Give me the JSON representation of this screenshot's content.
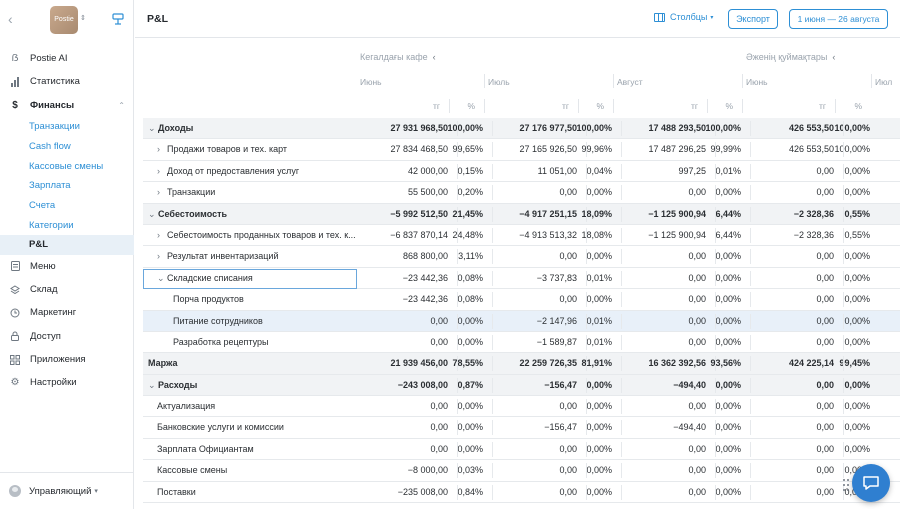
{
  "sidebar": {
    "logo_text": "Postie",
    "nav": [
      {
        "label": "Postie AI",
        "icon": "postie-ai-icon"
      },
      {
        "label": "Статистика",
        "icon": "bar-chart-icon"
      },
      {
        "label": "Финансы",
        "icon": "dollar-icon"
      }
    ],
    "finance_sub": [
      {
        "label": "Транзакции"
      },
      {
        "label": "Cash flow"
      },
      {
        "label": "Кассовые смены"
      },
      {
        "label": "Зарплата"
      },
      {
        "label": "Счета"
      },
      {
        "label": "Категории"
      },
      {
        "label": "P&L"
      }
    ],
    "nav2": [
      {
        "label": "Меню",
        "icon": "menu-doc-icon"
      },
      {
        "label": "Склад",
        "icon": "layers-icon"
      },
      {
        "label": "Маркетинг",
        "icon": "clock-icon"
      },
      {
        "label": "Доступ",
        "icon": "lock-icon"
      },
      {
        "label": "Приложения",
        "icon": "grid-icon"
      },
      {
        "label": "Настройки",
        "icon": "gear-icon"
      }
    ],
    "user": "Управляющий"
  },
  "header": {
    "title": "P&L",
    "columns_label": "Столбцы",
    "export_label": "Экспорт",
    "date_range": "1 июня — 26 августа"
  },
  "groups": [
    {
      "label": "Кегалдағы кафе"
    },
    {
      "label": "Әженің қуймақтары"
    }
  ],
  "months": [
    "Июнь",
    "Июль",
    "Август",
    "Июнь",
    "Июл"
  ],
  "units": {
    "currency": "тг",
    "percent": "%"
  },
  "rows": [
    {
      "name": "Доходы",
      "type": "section",
      "toggle": "⌄",
      "indent": 0,
      "v": [
        "27 931 968,50",
        "100,00%",
        "27 176 977,50",
        "100,00%",
        "17 488 293,50",
        "100,00%",
        "426 553,50",
        "100,00%"
      ]
    },
    {
      "name": "Продажи товаров и тех. карт",
      "type": "item",
      "toggle": "›",
      "indent": 1,
      "v": [
        "27 834 468,50",
        "99,65%",
        "27 165 926,50",
        "99,96%",
        "17 487 296,25",
        "99,99%",
        "426 553,50",
        "100,00%"
      ]
    },
    {
      "name": "Доход от предоставления услуг",
      "type": "item",
      "toggle": "›",
      "indent": 1,
      "v": [
        "42 000,00",
        "0,15%",
        "11 051,00",
        "0,04%",
        "997,25",
        "0,01%",
        "0,00",
        "0,00%"
      ]
    },
    {
      "name": "Транзакции",
      "type": "item",
      "toggle": "›",
      "indent": 1,
      "v": [
        "55 500,00",
        "0,20%",
        "0,00",
        "0,00%",
        "0,00",
        "0,00%",
        "0,00",
        "0,00%"
      ]
    },
    {
      "name": "Себестоимость",
      "type": "section",
      "toggle": "⌄",
      "indent": 0,
      "v": [
        "−5 992 512,50",
        "21,45%",
        "−4 917 251,15",
        "18,09%",
        "−1 125 900,94",
        "6,44%",
        "−2 328,36",
        "0,55%"
      ]
    },
    {
      "name": "Себестоимость проданных товаров и тех. к...",
      "type": "item",
      "toggle": "›",
      "indent": 1,
      "v": [
        "−6 837 870,14",
        "24,48%",
        "−4 913 513,32",
        "18,08%",
        "−1 125 900,94",
        "6,44%",
        "−2 328,36",
        "0,55%"
      ]
    },
    {
      "name": "Результат инвентаризаций",
      "type": "item",
      "toggle": "›",
      "indent": 1,
      "v": [
        "868 800,00",
        "3,11%",
        "0,00",
        "0,00%",
        "0,00",
        "0,00%",
        "0,00",
        "0,00%"
      ]
    },
    {
      "name": "Складские списания",
      "type": "focused",
      "toggle": "⌄",
      "indent": 1,
      "v": [
        "−23 442,36",
        "0,08%",
        "−3 737,83",
        "0,01%",
        "0,00",
        "0,00%",
        "0,00",
        "0,00%"
      ]
    },
    {
      "name": "Порча продуктов",
      "type": "item",
      "toggle": "",
      "indent": 2,
      "v": [
        "−23 442,36",
        "0,08%",
        "0,00",
        "0,00%",
        "0,00",
        "0,00%",
        "0,00",
        "0,00%"
      ]
    },
    {
      "name": "Питание сотрудников",
      "type": "selected",
      "toggle": "",
      "indent": 2,
      "v": [
        "0,00",
        "0,00%",
        "−2 147,96",
        "0,01%",
        "0,00",
        "0,00%",
        "0,00",
        "0,00%"
      ]
    },
    {
      "name": "Разработка рецептуры",
      "type": "item",
      "toggle": "",
      "indent": 2,
      "v": [
        "0,00",
        "0,00%",
        "−1 589,87",
        "0,01%",
        "0,00",
        "0,00%",
        "0,00",
        "0,00%"
      ]
    },
    {
      "name": "Маржа",
      "type": "section",
      "toggle": "",
      "indent": 0,
      "v": [
        "21 939 456,00",
        "78,55%",
        "22 259 726,35",
        "81,91%",
        "16 362 392,56",
        "93,56%",
        "424 225,14",
        "99,45%"
      ]
    },
    {
      "name": "Расходы",
      "type": "section",
      "toggle": "⌄",
      "indent": 0,
      "v": [
        "−243 008,00",
        "0,87%",
        "−156,47",
        "0,00%",
        "−494,40",
        "0,00%",
        "0,00",
        "0,00%"
      ]
    },
    {
      "name": "Актуализация",
      "type": "item",
      "toggle": "",
      "indent": 1,
      "v": [
        "0,00",
        "0,00%",
        "0,00",
        "0,00%",
        "0,00",
        "0,00%",
        "0,00",
        "0,00%"
      ]
    },
    {
      "name": "Банковские услуги и комиссии",
      "type": "item",
      "toggle": "",
      "indent": 1,
      "v": [
        "0,00",
        "0,00%",
        "−156,47",
        "0,00%",
        "−494,40",
        "0,00%",
        "0,00",
        "0,00%"
      ]
    },
    {
      "name": "Зарплата Официантам",
      "type": "item",
      "toggle": "",
      "indent": 1,
      "v": [
        "0,00",
        "0,00%",
        "0,00",
        "0,00%",
        "0,00",
        "0,00%",
        "0,00",
        "0,00%"
      ]
    },
    {
      "name": "Кассовые смены",
      "type": "item",
      "toggle": "",
      "indent": 1,
      "v": [
        "−8 000,00",
        "0,03%",
        "0,00",
        "0,00%",
        "0,00",
        "0,00%",
        "0,00",
        "0,00%"
      ]
    },
    {
      "name": "Поставки",
      "type": "item",
      "toggle": "",
      "indent": 1,
      "v": [
        "−235 008,00",
        "0,84%",
        "0,00",
        "0,00%",
        "0,00",
        "0,00%",
        "0,00",
        "0,00%"
      ]
    }
  ]
}
